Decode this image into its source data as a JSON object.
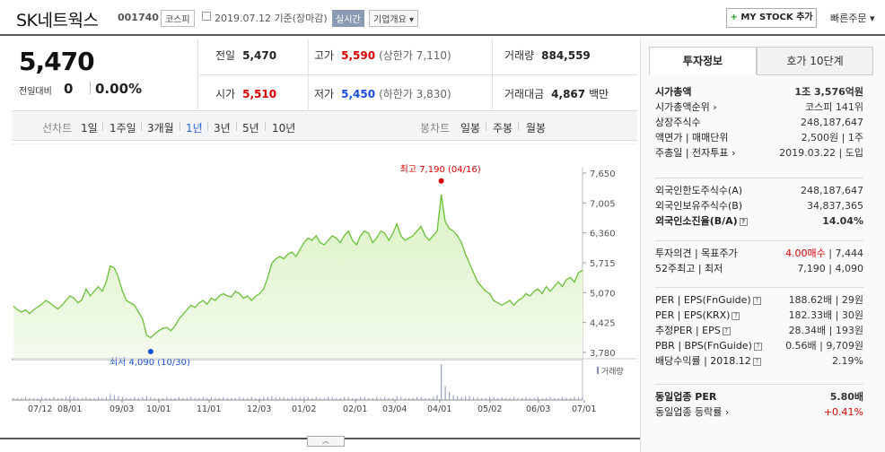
{
  "header": {
    "name": "SK네트웍스",
    "code": "001740",
    "market": "코스피",
    "date": "2019.07.12  기준(장마감)",
    "live_label": "실시간",
    "info_label": "기업개요 ▾",
    "mystock_label": "MY STOCK 추가",
    "fast_order": "빠른주문 ▾"
  },
  "price": {
    "current": "5,470",
    "change_label": "전일대비",
    "change": "0",
    "change_pct": "0.00%"
  },
  "stats": {
    "prev_label": "전일",
    "prev": "5,470",
    "high_label": "고가",
    "high": "5,590",
    "upper_limit": "(상한가 7,110)",
    "volume_label": "거래량",
    "volume": "884,559",
    "open_label": "시가",
    "open": "5,510",
    "low_label": "저가",
    "low": "5,450",
    "lower_limit": "(하한가 3,830)",
    "amount_label": "거래대금",
    "amount": "4,867",
    "amount_unit": "백만"
  },
  "period": {
    "line_label": "선차트",
    "line_opts": [
      "1일",
      "1주일",
      "3개월",
      "1년",
      "3년",
      "5년",
      "10년"
    ],
    "selected": "1년",
    "candle_label": "봉차트",
    "candle_opts": [
      "일봉",
      "주봉",
      "월봉"
    ]
  },
  "chart_data": {
    "type": "area",
    "y_ticks": [
      "7,650",
      "7,005",
      "6,360",
      "5,715",
      "5,070",
      "4,425",
      "3,780"
    ],
    "ylim": [
      3780,
      7650
    ],
    "x_ticks": [
      "07/12",
      "08/01",
      "09/03",
      "10/01",
      "11/01",
      "12/03",
      "01/02",
      "02/01",
      "03/04",
      "04/01",
      "05/02",
      "06/03",
      "07/01"
    ],
    "series": [
      {
        "values": [
          4780,
          4700,
          4650,
          4700,
          4620,
          4700,
          4760,
          4820,
          4900,
          4850,
          4780,
          4720,
          4800,
          4900,
          5000,
          4950,
          4850,
          4920,
          5150,
          5000,
          5100,
          5200,
          5100,
          5300,
          5650,
          5600,
          5400,
          5100,
          4900,
          4850,
          4800,
          4650,
          4500,
          4150,
          4100,
          4180,
          4250,
          4300,
          4320,
          4250,
          4350,
          4500,
          4600,
          4700,
          4800,
          4750,
          4850,
          4900,
          4820,
          4950,
          4900,
          5000,
          5050,
          5000,
          4980,
          5100,
          5050,
          4950,
          5000,
          4900,
          5000,
          5050,
          5150,
          5400,
          5700,
          5800,
          5850,
          5800,
          5900,
          5950,
          5850,
          6000,
          6150,
          6250,
          6200,
          6300,
          6150,
          6100,
          6200,
          6300,
          6250,
          6150,
          6300,
          6400,
          6200,
          6100,
          6300,
          6400,
          6350,
          6150,
          6250,
          6400,
          6350,
          6200,
          6350,
          6550,
          6300,
          6200,
          6250,
          6300,
          6400,
          6500,
          6300,
          6200,
          6300,
          6400,
          7190,
          6600,
          6450,
          6400,
          6300,
          6150,
          5900,
          5700,
          5500,
          5300,
          5200,
          5100,
          5050,
          4900,
          4850,
          4800,
          4850,
          4900,
          4800,
          4900,
          4950,
          5050,
          5000,
          5100,
          5150,
          5050,
          5200,
          5100,
          5200,
          5300,
          5200,
          5350,
          5400,
          5300,
          5500,
          5550
        ],
        "volumes": [
          2,
          2,
          2,
          3,
          2,
          2,
          2,
          3,
          2,
          2,
          3,
          2,
          2,
          3,
          4,
          3,
          2,
          2,
          3,
          2,
          2,
          3,
          2,
          3,
          6,
          5,
          4,
          3,
          2,
          2,
          3,
          2,
          3,
          4,
          3,
          2,
          2,
          2,
          3,
          2,
          2,
          3,
          2,
          2,
          3,
          2,
          2,
          3,
          2,
          3,
          2,
          2,
          3,
          2,
          2,
          2,
          3,
          2,
          2,
          3,
          2,
          2,
          3,
          3,
          4,
          3,
          3,
          3,
          2,
          3,
          2,
          3,
          3,
          3,
          2,
          3,
          2,
          2,
          3,
          3,
          2,
          2,
          3,
          3,
          2,
          2,
          3,
          3,
          2,
          2,
          3,
          2,
          3,
          2,
          2,
          4,
          3,
          2,
          2,
          2,
          3,
          3,
          2,
          2,
          3,
          5,
          36,
          14,
          8,
          5,
          4,
          3,
          4,
          4,
          3,
          3,
          2,
          2,
          3,
          3,
          2,
          3,
          2,
          2,
          3,
          2,
          2,
          3,
          2,
          2,
          3,
          2,
          2,
          3,
          2,
          2,
          3,
          2,
          2,
          3,
          3,
          3
        ]
      }
    ],
    "max_label": "최고 7,190 (04/16)",
    "min_label": "최저 4,090 (10/30)",
    "max_value": 7190,
    "min_value": 4090,
    "volume_label": "거래량",
    "colors": {
      "line": "#6bbf3a",
      "fill_top": "#d9f2c2",
      "fill_bottom": "#f4fbee",
      "max": "#d60000",
      "min": "#1a4fd8"
    }
  },
  "right": {
    "tab_active": "투자정보",
    "tab_inactive": "호가 10단계",
    "group1": [
      {
        "k": "시가총액",
        "v": "1조 3,576억원",
        "bold": true
      },
      {
        "k": "시가총액순위 ›",
        "v": "코스피  141위"
      },
      {
        "k": "상장주식수",
        "v": "248,187,647"
      },
      {
        "k": "액면가 | 매매단위",
        "v": "2,500원 | 1주"
      },
      {
        "k": "주총일 | 전자투표 ›",
        "v": "2019.03.22 | 도입"
      }
    ],
    "group2": [
      {
        "k": "외국인한도주식수(A)",
        "v": "248,187,647"
      },
      {
        "k": "외국인보유주식수(B)",
        "v": "34,837,365"
      },
      {
        "k": "외국인소진율(B/A)",
        "v": "14.04%",
        "bold": true
      }
    ],
    "group3": [
      {
        "k": "투자의견 | 목표주가",
        "v": "4.00매수 | 7,444",
        "up": true
      },
      {
        "k": "52주최고 | 최저",
        "v": "7,190 | 4,090"
      }
    ],
    "group4": [
      {
        "k": "PER | EPS(FnGuide)",
        "v": "188.62배 | 29원"
      },
      {
        "k": "PER | EPS(KRX)",
        "v": "182.33배 | 30원"
      },
      {
        "k": "추정PER | EPS",
        "v": "28.34배 | 193원"
      },
      {
        "k": "PBR | BPS(FnGuide)",
        "v": "0.56배 | 9,709원"
      },
      {
        "k": "배당수익률 | 2018.12",
        "v": "2.19%"
      }
    ],
    "group5": [
      {
        "k": "동일업종 PER",
        "v": "5.80배",
        "bold": true
      },
      {
        "k": "동일업종 등락률 ›",
        "v": "+0.41%",
        "up": true
      }
    ]
  },
  "close_tab": "︿"
}
